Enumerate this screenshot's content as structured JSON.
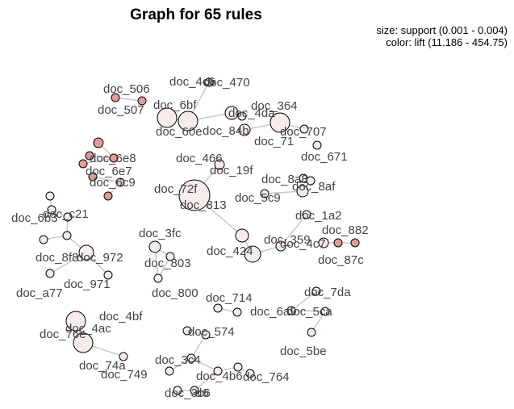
{
  "title": "Graph for 65 rules",
  "legend": {
    "size": "size: support (0.001 - 0.004)",
    "color": "color: lift (11.186 - 454.75)"
  },
  "colors": {
    "node_low_lift": "#f6eceb",
    "node_mid_lift": "#eec6c4",
    "node_high_lift": "#e49c9a",
    "node_stroke": "#000000",
    "edge": "#c8c8c8",
    "label": "#444444"
  },
  "labels": [
    "doc_506",
    "doc_4c6",
    "doc_470",
    "doc_507",
    "doc_6bf",
    "doc_4da",
    "doc_364",
    "doc_60e",
    "doc_84b",
    "doc_707",
    "doc_71",
    "doc_671",
    "doc_6e8",
    "doc_466",
    "doc_19f",
    "doc_8a8",
    "doc_6e7",
    "doc_6c9",
    "doc_8af",
    "doc_72f",
    "doc_813",
    "doc_5c9",
    "doc_6b3",
    "doc_c21",
    "doc_1a2",
    "doc_882",
    "doc_3fc",
    "doc_359",
    "doc_424",
    "doc_4c7",
    "doc_87c",
    "doc_8f8",
    "doc_972",
    "doc_803",
    "doc_971",
    "doc_a77",
    "doc_800",
    "doc_7da",
    "doc_714",
    "doc_6a9",
    "doc_5ca",
    "doc_4bf",
    "doc_4ac",
    "doc_76e",
    "doc_574",
    "doc_5be",
    "doc_74a",
    "doc_3c4",
    "doc_749",
    "doc_4b6",
    "doc_764",
    "doc_3c6",
    "d6"
  ]
}
